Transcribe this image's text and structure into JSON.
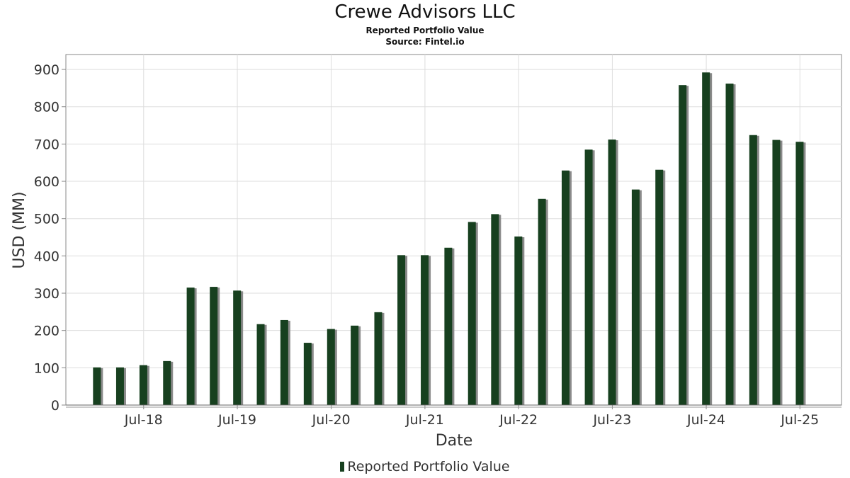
{
  "header": {
    "title": "Crewe Advisors LLC",
    "subtitle": "Reported Portfolio Value",
    "source": "Source: Fintel.io"
  },
  "legend": {
    "label": "Reported Portfolio Value"
  },
  "colors": {
    "bar": "#17401f",
    "shadow": "#8a8a8a",
    "grid": "#dddddd",
    "frame": "#888888"
  },
  "chart_data": {
    "type": "bar",
    "title": "Crewe Advisors LLC",
    "subtitle": "Reported Portfolio Value",
    "xlabel": "Date",
    "ylabel": "USD (MM)",
    "ylim": [
      0,
      940
    ],
    "yticks": [
      0,
      100,
      200,
      300,
      400,
      500,
      600,
      700,
      800,
      900
    ],
    "xticks": [
      {
        "label": "Jul-18",
        "date": "2018-07-01"
      },
      {
        "label": "Jul-19",
        "date": "2019-07-01"
      },
      {
        "label": "Jul-20",
        "date": "2020-07-01"
      },
      {
        "label": "Jul-21",
        "date": "2021-07-01"
      },
      {
        "label": "Jul-22",
        "date": "2022-07-01"
      },
      {
        "label": "Jul-23",
        "date": "2023-07-01"
      },
      {
        "label": "Jul-24",
        "date": "2024-07-01"
      },
      {
        "label": "Jul-25",
        "date": "2025-07-01"
      }
    ],
    "xlim": [
      "2017-09-01",
      "2025-12-10"
    ],
    "grid": true,
    "legend_position": "bottom",
    "series": [
      {
        "name": "Reported Portfolio Value",
        "points": [
          {
            "date": "2017-12-31",
            "value": 101
          },
          {
            "date": "2018-03-31",
            "value": 101
          },
          {
            "date": "2018-06-30",
            "value": 107
          },
          {
            "date": "2018-09-30",
            "value": 118
          },
          {
            "date": "2018-12-31",
            "value": 315
          },
          {
            "date": "2019-03-31",
            "value": 317
          },
          {
            "date": "2019-06-30",
            "value": 307
          },
          {
            "date": "2019-09-30",
            "value": 217
          },
          {
            "date": "2019-12-31",
            "value": 228
          },
          {
            "date": "2020-03-31",
            "value": 167
          },
          {
            "date": "2020-06-30",
            "value": 204
          },
          {
            "date": "2020-09-30",
            "value": 213
          },
          {
            "date": "2020-12-31",
            "value": 249
          },
          {
            "date": "2021-03-31",
            "value": 402
          },
          {
            "date": "2021-06-30",
            "value": 402
          },
          {
            "date": "2021-09-30",
            "value": 422
          },
          {
            "date": "2021-12-31",
            "value": 491
          },
          {
            "date": "2022-03-31",
            "value": 512
          },
          {
            "date": "2022-06-30",
            "value": 452
          },
          {
            "date": "2022-09-30",
            "value": 553
          },
          {
            "date": "2022-12-31",
            "value": 629
          },
          {
            "date": "2023-03-31",
            "value": 685
          },
          {
            "date": "2023-06-30",
            "value": 712
          },
          {
            "date": "2023-09-30",
            "value": 578
          },
          {
            "date": "2023-12-31",
            "value": 631
          },
          {
            "date": "2024-03-31",
            "value": 858
          },
          {
            "date": "2024-06-30",
            "value": 892
          },
          {
            "date": "2024-09-30",
            "value": 862
          },
          {
            "date": "2024-12-31",
            "value": 724
          },
          {
            "date": "2025-03-31",
            "value": 711
          },
          {
            "date": "2025-06-30",
            "value": 706
          }
        ]
      }
    ]
  }
}
